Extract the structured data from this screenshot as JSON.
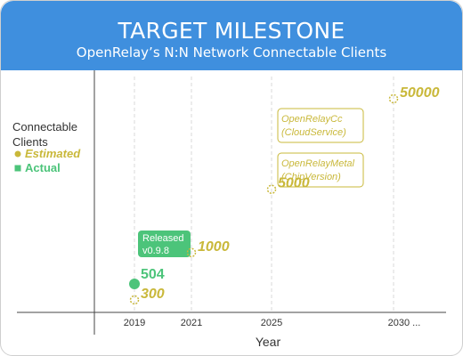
{
  "header": {
    "title": "TARGET MILESTONE",
    "subtitle": "OpenRelay’s N:N Network Connectable Clients"
  },
  "chart_data": {
    "type": "scatter",
    "title": "TARGET MILESTONE",
    "subtitle": "OpenRelay’s N:N Network Connectable Clients",
    "xlabel": "Year",
    "ylabel": "Connectable Clients",
    "x_ticks": [
      "2019",
      "2021",
      "2025",
      "2030 ..."
    ],
    "grid": "vertical dashed",
    "legend": [
      {
        "name": "Estimated",
        "color": "#c9b83a",
        "marker": "circle"
      },
      {
        "name": "Actual",
        "color": "#4cc47a",
        "marker": "square"
      }
    ],
    "series": [
      {
        "name": "Estimated",
        "color": "#c9b83a",
        "points": [
          {
            "x": "2019",
            "y": 300,
            "label": "300"
          },
          {
            "x": "2021",
            "y": 1000,
            "label": "1000"
          },
          {
            "x": "2025",
            "y": 5000,
            "label": "5000"
          },
          {
            "x": "2030 ...",
            "y": 50000,
            "label": "50000"
          }
        ]
      },
      {
        "name": "Actual",
        "color": "#4cc47a",
        "points": [
          {
            "x": "2019",
            "y": 504,
            "label": "504"
          }
        ]
      }
    ],
    "annotations": [
      {
        "text": [
          "Released",
          "v0.9.8"
        ],
        "style": "filled",
        "color": "#4cc47a"
      },
      {
        "text": [
          "OpenRelayCc",
          "(CloudService)"
        ],
        "style": "outline",
        "color": "#c9b83a"
      },
      {
        "text": [
          "OpenRelayMetal",
          "(ChipVersion)"
        ],
        "style": "outline",
        "color": "#c9b83a"
      }
    ]
  }
}
